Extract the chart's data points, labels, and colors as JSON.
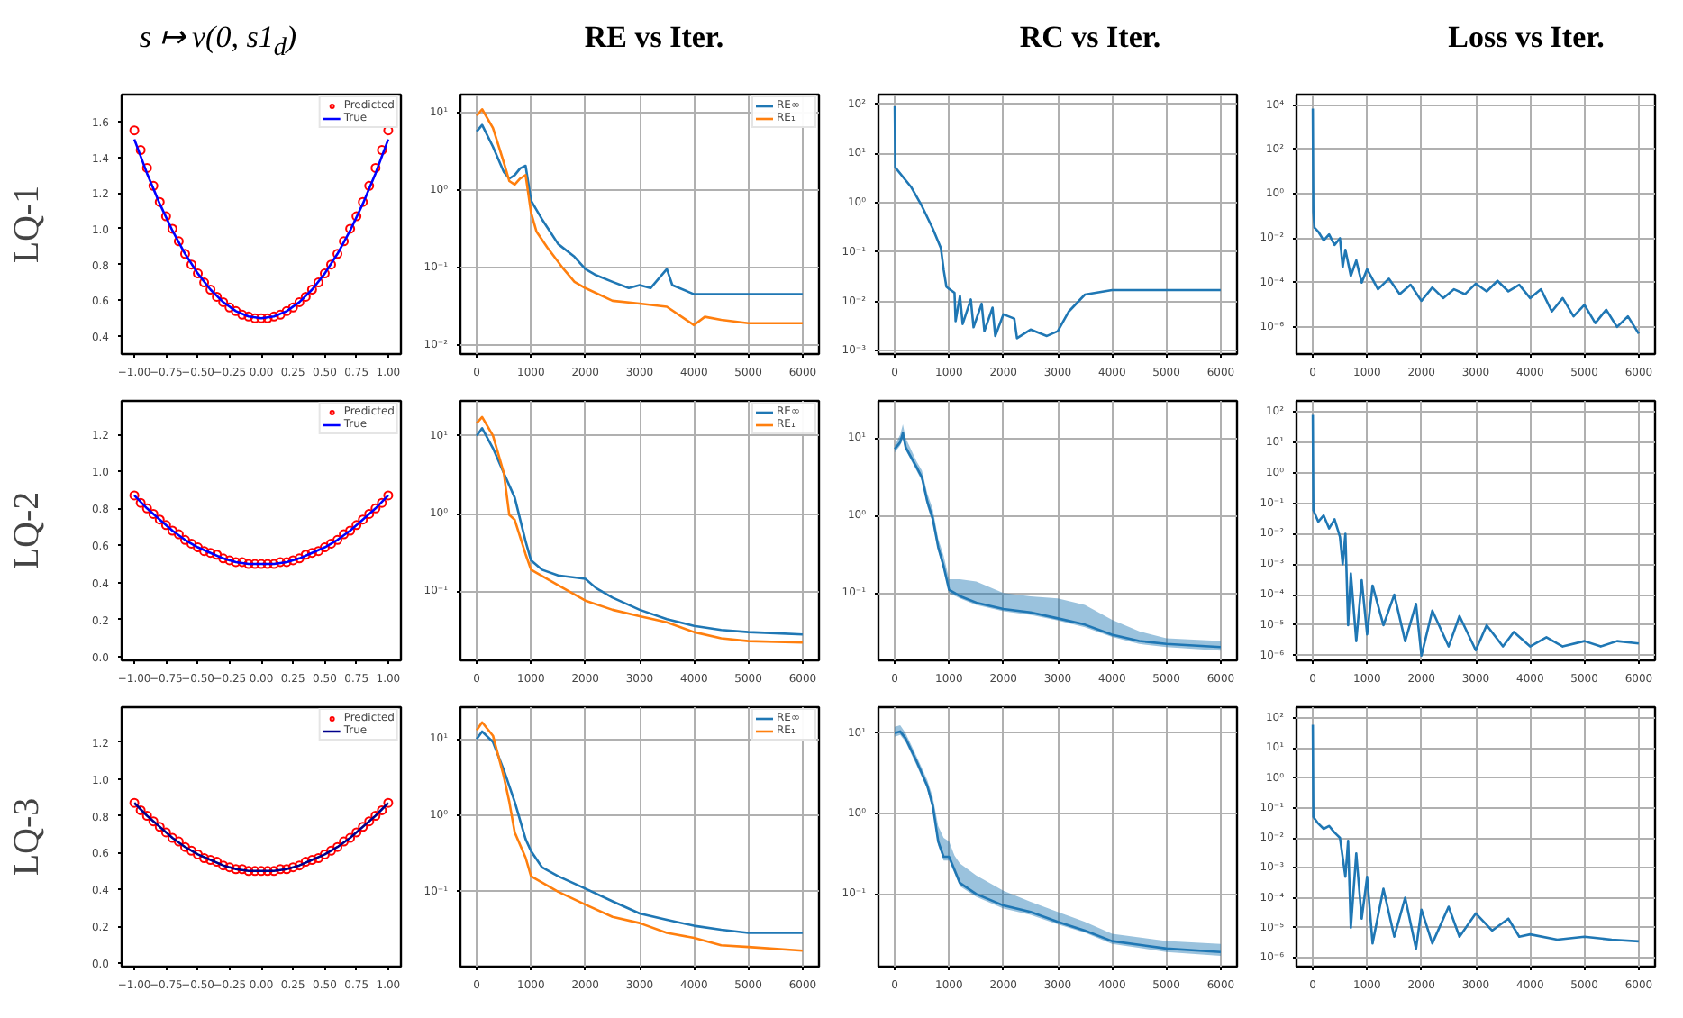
{
  "chart_data": [
    {
      "type": "line",
      "title": "s ↦ v(0, s1$_{d}$)",
      "ylabel": "LQ-1",
      "grid": false,
      "legend": "top right",
      "xlim": [
        -1.1,
        1.1
      ],
      "ylim": [
        0.3,
        1.75
      ],
      "xticks": [
        {
          "value": -1,
          "label": "−1.00"
        },
        {
          "value": -0.75,
          "label": "−0.75"
        },
        {
          "value": -0.5,
          "label": "−0.50"
        },
        {
          "value": -0.25,
          "label": "−0.25"
        },
        {
          "value": 0,
          "label": "0.00"
        },
        {
          "value": 0.25,
          "label": "0.25"
        },
        {
          "value": 0.5,
          "label": "0.50"
        },
        {
          "value": 0.75,
          "label": "0.75"
        },
        {
          "value": 1,
          "label": "1.00"
        }
      ],
      "yticks": [
        {
          "value": 0.4,
          "label": "0.4"
        },
        {
          "value": 0.6,
          "label": "0.6"
        },
        {
          "value": 0.8,
          "label": "0.8"
        },
        {
          "value": 1.0,
          "label": "1.0"
        },
        {
          "value": 1.2,
          "label": "1.2"
        },
        {
          "value": 1.4,
          "label": "1.4"
        },
        {
          "value": 1.6,
          "label": "1.6"
        }
      ],
      "series": [
        {
          "name": "Predicted",
          "type": "scatter",
          "marker": "circle",
          "color": "#ff0000",
          "x": [
            -1,
            -0.95,
            -0.9,
            -0.85,
            -0.8,
            -0.75,
            -0.7,
            -0.65,
            -0.6,
            -0.55,
            -0.5,
            -0.45,
            -0.4,
            -0.35,
            -0.3,
            -0.25,
            -0.2,
            -0.15,
            -0.1,
            -0.05,
            0,
            0.05,
            0.1,
            0.15,
            0.2,
            0.25,
            0.3,
            0.35,
            0.4,
            0.45,
            0.5,
            0.55,
            0.6,
            0.65,
            0.7,
            0.75,
            0.8,
            0.85,
            0.9,
            0.95,
            1
          ],
          "values": [
            1.55,
            1.44,
            1.34,
            1.24,
            1.15,
            1.07,
            1.0,
            0.93,
            0.86,
            0.8,
            0.75,
            0.7,
            0.66,
            0.62,
            0.59,
            0.56,
            0.54,
            0.52,
            0.51,
            0.5,
            0.5,
            0.5,
            0.51,
            0.52,
            0.54,
            0.56,
            0.59,
            0.62,
            0.66,
            0.7,
            0.75,
            0.8,
            0.86,
            0.93,
            1.0,
            1.07,
            1.15,
            1.24,
            1.34,
            1.44,
            1.55
          ]
        },
        {
          "name": "True",
          "type": "line",
          "color": "#0000ff",
          "x": [
            -1,
            -0.9,
            -0.8,
            -0.7,
            -0.6,
            -0.5,
            -0.4,
            -0.3,
            -0.2,
            -0.1,
            0,
            0.1,
            0.2,
            0.3,
            0.4,
            0.5,
            0.6,
            0.7,
            0.8,
            0.9,
            1
          ],
          "values": [
            1.5,
            1.31,
            1.14,
            0.99,
            0.86,
            0.75,
            0.66,
            0.59,
            0.54,
            0.51,
            0.5,
            0.51,
            0.54,
            0.59,
            0.66,
            0.75,
            0.86,
            0.99,
            1.14,
            1.31,
            1.5
          ]
        }
      ]
    },
    {
      "type": "line",
      "title": "RE vs Iter.",
      "log": "y",
      "grid": true,
      "legend": "top right",
      "xlim": [
        -300,
        6300
      ],
      "ylim": [
        0.0076,
        17
      ],
      "xticks": [
        0,
        1000,
        2000,
        3000,
        4000,
        5000,
        6000
      ],
      "yticks": [
        {
          "value": 0.01,
          "label": "10⁻²"
        },
        {
          "value": 0.1,
          "label": "10⁻¹"
        },
        {
          "value": 1,
          "label": "10⁰"
        },
        {
          "value": 10,
          "label": "10¹"
        }
      ],
      "series": [
        {
          "name": "RE∞",
          "color": "#1f77b4",
          "x": [
            0,
            100,
            300,
            500,
            600,
            700,
            800,
            900,
            1000,
            1200,
            1500,
            1800,
            2000,
            2200,
            2500,
            2800,
            3000,
            3200,
            3500,
            3600,
            4000,
            4500,
            5000,
            5500,
            6000
          ],
          "values": [
            5.7,
            6.9,
            3.6,
            1.7,
            1.4,
            1.55,
            1.9,
            2.05,
            0.73,
            0.42,
            0.2,
            0.137,
            0.095,
            0.079,
            0.065,
            0.054,
            0.059,
            0.054,
            0.095,
            0.059,
            0.045,
            0.045,
            0.045,
            0.045,
            0.045
          ]
        },
        {
          "name": "RE₁",
          "color": "#ff7f0e",
          "x": [
            0,
            100,
            300,
            500,
            600,
            700,
            800,
            900,
            1000,
            1100,
            1300,
            1600,
            1800,
            2000,
            2500,
            3000,
            3500,
            4000,
            4200,
            4500,
            5000,
            5500,
            6000
          ],
          "values": [
            9.1,
            11,
            6.3,
            2.25,
            1.3,
            1.17,
            1.4,
            1.55,
            0.51,
            0.29,
            0.18,
            0.095,
            0.065,
            0.054,
            0.037,
            0.034,
            0.031,
            0.018,
            0.023,
            0.021,
            0.019,
            0.019,
            0.019
          ]
        }
      ]
    },
    {
      "type": "line",
      "title": "RC vs Iter.",
      "log": "y",
      "grid": true,
      "xlim": [
        -300,
        6300
      ],
      "ylim": [
        0.00086,
        156
      ],
      "xticks": [
        0,
        1000,
        2000,
        3000,
        4000,
        5000,
        6000
      ],
      "yticks": [
        {
          "value": 0.001,
          "label": "10⁻³"
        },
        {
          "value": 0.01,
          "label": "10⁻²"
        },
        {
          "value": 0.1,
          "label": "10⁻¹"
        },
        {
          "value": 1,
          "label": "10⁰"
        },
        {
          "value": 10,
          "label": "10¹"
        },
        {
          "value": 100,
          "label": "10²"
        }
      ],
      "series": [
        {
          "color": "#1f77b4",
          "x": [
            0,
            10,
            300,
            500,
            700,
            850,
            900,
            950,
            1000,
            1100,
            1120,
            1200,
            1250,
            1400,
            1450,
            1600,
            1650,
            1800,
            1850,
            2000,
            2200,
            2250,
            2500,
            2800,
            3000,
            3200,
            3500,
            4000,
            5000,
            6000
          ],
          "values": [
            90,
            5.2,
            2.1,
            0.86,
            0.3,
            0.12,
            0.044,
            0.02,
            0.018,
            0.015,
            0.004,
            0.013,
            0.0035,
            0.011,
            0.003,
            0.009,
            0.0025,
            0.0075,
            0.002,
            0.0055,
            0.0045,
            0.0018,
            0.0027,
            0.002,
            0.0025,
            0.0062,
            0.0138,
            0.017,
            0.017,
            0.017
          ]
        }
      ]
    },
    {
      "type": "line",
      "title": "Loss vs Iter.",
      "log": "y",
      "grid": true,
      "xlim": [
        -300,
        6300
      ],
      "ylim": [
        6e-08,
        30000
      ],
      "xticks": [
        0,
        1000,
        2000,
        3000,
        4000,
        5000,
        6000
      ],
      "yticks": [
        {
          "value": 1e-06,
          "label": "10⁻⁶"
        },
        {
          "value": 0.0001,
          "label": "10⁻⁴"
        },
        {
          "value": 0.01,
          "label": "10⁻²"
        },
        {
          "value": 1,
          "label": "10⁰"
        },
        {
          "value": 100,
          "label": "10²"
        },
        {
          "value": 10000,
          "label": "10⁴"
        }
      ],
      "series": [
        {
          "color": "#1f77b4",
          "x": [
            0,
            10,
            30,
            100,
            200,
            300,
            400,
            500,
            550,
            600,
            700,
            800,
            900,
            1000,
            1200,
            1400,
            1600,
            1800,
            2000,
            2200,
            2400,
            2600,
            2800,
            3000,
            3200,
            3400,
            3600,
            3800,
            4000,
            4200,
            4400,
            4600,
            4800,
            5000,
            5200,
            5400,
            5600,
            5800,
            6000
          ],
          "values": [
            7000,
            0.16,
            0.03,
            0.02,
            0.008,
            0.015,
            0.005,
            0.01,
            0.0005,
            0.003,
            0.0002,
            0.001,
            0.0001,
            0.0004,
            5e-05,
            0.00015,
            3e-05,
            8e-05,
            1.5e-05,
            6e-05,
            2e-05,
            5e-05,
            3e-05,
            9e-05,
            4e-05,
            0.00012,
            4e-05,
            8e-05,
            2e-05,
            5e-05,
            5e-06,
            2e-05,
            3e-06,
            1e-05,
            1.5e-06,
            6e-06,
            1e-06,
            3e-06,
            5e-07
          ]
        }
      ]
    },
    {
      "type": "line",
      "ylabel": "LQ-2",
      "grid": false,
      "legend": "top right",
      "xlim": [
        -1.1,
        1.1
      ],
      "ylim": [
        -0.02,
        1.38
      ],
      "xticks": [
        {
          "value": -1,
          "label": "−1.00"
        },
        {
          "value": -0.75,
          "label": "−0.75"
        },
        {
          "value": -0.5,
          "label": "−0.50"
        },
        {
          "value": -0.25,
          "label": "−0.25"
        },
        {
          "value": 0,
          "label": "0.00"
        },
        {
          "value": 0.25,
          "label": "0.25"
        },
        {
          "value": 0.5,
          "label": "0.50"
        },
        {
          "value": 0.75,
          "label": "0.75"
        },
        {
          "value": 1,
          "label": "1.00"
        }
      ],
      "yticks": [
        {
          "value": 0,
          "label": "0.0"
        },
        {
          "value": 0.2,
          "label": "0.2"
        },
        {
          "value": 0.4,
          "label": "0.4"
        },
        {
          "value": 0.6,
          "label": "0.6"
        },
        {
          "value": 0.8,
          "label": "0.8"
        },
        {
          "value": 1.0,
          "label": "1.0"
        },
        {
          "value": 1.2,
          "label": "1.2"
        }
      ],
      "series": [
        {
          "name": "Predicted",
          "type": "scatter",
          "marker": "circle",
          "color": "#ff0000",
          "x": [
            -1,
            -0.95,
            -0.9,
            -0.85,
            -0.8,
            -0.75,
            -0.7,
            -0.65,
            -0.6,
            -0.55,
            -0.5,
            -0.45,
            -0.4,
            -0.35,
            -0.3,
            -0.25,
            -0.2,
            -0.15,
            -0.1,
            -0.05,
            0,
            0.05,
            0.1,
            0.15,
            0.2,
            0.25,
            0.3,
            0.35,
            0.4,
            0.45,
            0.5,
            0.55,
            0.6,
            0.65,
            0.7,
            0.75,
            0.8,
            0.85,
            0.9,
            0.95,
            1
          ],
          "values": [
            0.87,
            0.83,
            0.8,
            0.77,
            0.74,
            0.71,
            0.68,
            0.66,
            0.63,
            0.61,
            0.59,
            0.57,
            0.56,
            0.55,
            0.53,
            0.52,
            0.51,
            0.51,
            0.5,
            0.5,
            0.5,
            0.5,
            0.5,
            0.51,
            0.51,
            0.52,
            0.53,
            0.55,
            0.56,
            0.57,
            0.59,
            0.61,
            0.63,
            0.66,
            0.68,
            0.71,
            0.74,
            0.77,
            0.8,
            0.83,
            0.87
          ]
        },
        {
          "name": "True",
          "type": "line",
          "color": "#0000ff",
          "x": [
            -1,
            -0.9,
            -0.8,
            -0.7,
            -0.6,
            -0.5,
            -0.4,
            -0.3,
            -0.2,
            -0.1,
            0,
            0.1,
            0.2,
            0.3,
            0.4,
            0.5,
            0.6,
            0.7,
            0.8,
            0.9,
            1
          ],
          "values": [
            0.87,
            0.8,
            0.74,
            0.68,
            0.63,
            0.59,
            0.56,
            0.53,
            0.51,
            0.5,
            0.5,
            0.5,
            0.51,
            0.53,
            0.56,
            0.59,
            0.63,
            0.68,
            0.74,
            0.8,
            0.87
          ]
        }
      ]
    },
    {
      "type": "line",
      "log": "y",
      "grid": true,
      "legend": "top right",
      "xlim": [
        -300,
        6300
      ],
      "ylim": [
        0.013,
        28
      ],
      "xticks": [
        0,
        1000,
        2000,
        3000,
        4000,
        5000,
        6000
      ],
      "yticks": [
        {
          "value": 0.1,
          "label": "10⁻¹"
        },
        {
          "value": 1,
          "label": "10⁰"
        },
        {
          "value": 10,
          "label": "10¹"
        }
      ],
      "series": [
        {
          "name": "RE∞",
          "color": "#1f77b4",
          "x": [
            0,
            100,
            300,
            500,
            700,
            900,
            1000,
            1200,
            1500,
            2000,
            2200,
            2500,
            3000,
            3500,
            4000,
            4500,
            5000,
            5500,
            6000
          ],
          "values": [
            10,
            12.5,
            6.9,
            3.3,
            1.6,
            0.44,
            0.25,
            0.19,
            0.16,
            0.145,
            0.11,
            0.083,
            0.058,
            0.044,
            0.036,
            0.032,
            0.03,
            0.029,
            0.028
          ]
        },
        {
          "name": "RE₁",
          "color": "#ff7f0e",
          "x": [
            0,
            100,
            300,
            500,
            600,
            700,
            900,
            1000,
            1500,
            2000,
            2500,
            3000,
            3500,
            4000,
            4500,
            5000,
            6000
          ],
          "values": [
            14.5,
            17.4,
            10,
            3.3,
            0.96,
            0.83,
            0.3,
            0.19,
            0.12,
            0.076,
            0.058,
            0.048,
            0.04,
            0.03,
            0.025,
            0.023,
            0.022
          ]
        }
      ]
    },
    {
      "type": "line",
      "log": "y",
      "grid": true,
      "xlim": [
        -300,
        6300
      ],
      "ylim": [
        0.0135,
        30
      ],
      "xticks": [
        0,
        1000,
        2000,
        3000,
        4000,
        5000,
        6000
      ],
      "yticks": [
        {
          "value": 0.1,
          "label": "10⁻¹"
        },
        {
          "value": 1,
          "label": "10⁰"
        },
        {
          "value": 10,
          "label": "10¹"
        }
      ],
      "series": [
        {
          "color": "#1f77b4",
          "x": [
            0,
            100,
            150,
            200,
            400,
            500,
            600,
            700,
            800,
            900,
            1000,
            1200,
            1500,
            2000,
            2500,
            3000,
            3500,
            4000,
            4500,
            5000,
            6000
          ],
          "values": [
            7.2,
            8.8,
            11.6,
            7.6,
            4.2,
            3.1,
            1.5,
            0.91,
            0.39,
            0.22,
            0.11,
            0.091,
            0.075,
            0.062,
            0.056,
            0.047,
            0.039,
            0.029,
            0.024,
            0.022,
            0.02
          ],
          "upper": [
            8,
            11,
            15,
            10,
            5,
            3.8,
            1.9,
            1.2,
            0.5,
            0.3,
            0.15,
            0.15,
            0.14,
            0.1,
            0.09,
            0.085,
            0.07,
            0.045,
            0.032,
            0.026,
            0.024
          ],
          "lower": [
            6.5,
            8,
            10,
            7,
            3.8,
            2.8,
            1.3,
            0.8,
            0.35,
            0.2,
            0.1,
            0.085,
            0.07,
            0.058,
            0.052,
            0.044,
            0.036,
            0.027,
            0.022,
            0.02,
            0.018
          ]
        }
      ]
    },
    {
      "type": "line",
      "log": "y",
      "grid": true,
      "xlim": [
        -300,
        6300
      ],
      "ylim": [
        7e-07,
        230
      ],
      "xticks": [
        0,
        1000,
        2000,
        3000,
        4000,
        5000,
        6000
      ],
      "yticks": [
        {
          "value": 1e-06,
          "label": "10⁻⁶"
        },
        {
          "value": 1e-05,
          "label": "10⁻⁵"
        },
        {
          "value": 0.0001,
          "label": "10⁻⁴"
        },
        {
          "value": 0.001,
          "label": "10⁻³"
        },
        {
          "value": 0.01,
          "label": "10⁻²"
        },
        {
          "value": 0.1,
          "label": "10⁻¹"
        },
        {
          "value": 1,
          "label": "10⁰"
        },
        {
          "value": 10,
          "label": "10¹"
        },
        {
          "value": 100,
          "label": "10²"
        }
      ],
      "series": [
        {
          "color": "#1f77b4",
          "x": [
            0,
            10,
            100,
            200,
            300,
            400,
            500,
            550,
            600,
            650,
            700,
            800,
            900,
            1000,
            1100,
            1300,
            1500,
            1700,
            1900,
            2000,
            2200,
            2500,
            2700,
            3000,
            3200,
            3500,
            3700,
            4000,
            4300,
            4600,
            5000,
            5300,
            5600,
            6000
          ],
          "values": [
            80,
            0.06,
            0.025,
            0.04,
            0.015,
            0.03,
            0.008,
            0.001,
            0.01,
            1e-05,
            0.0005,
            3e-06,
            0.0003,
            5e-06,
            0.0002,
            1e-05,
            0.0001,
            3e-06,
            5e-05,
            1e-06,
            3e-05,
            2e-06,
            2e-05,
            1.5e-06,
            1e-05,
            2e-06,
            6e-06,
            2e-06,
            4e-06,
            2e-06,
            3e-06,
            2e-06,
            3e-06,
            2.5e-06
          ]
        }
      ]
    },
    {
      "type": "line",
      "ylabel": "LQ-3",
      "grid": false,
      "legend": "top right",
      "xlim": [
        -1.1,
        1.1
      ],
      "ylim": [
        -0.02,
        1.39
      ],
      "xticks": [
        {
          "value": -1,
          "label": "−1.00"
        },
        {
          "value": -0.75,
          "label": "−0.75"
        },
        {
          "value": -0.5,
          "label": "−0.50"
        },
        {
          "value": -0.25,
          "label": "−0.25"
        },
        {
          "value": 0,
          "label": "0.00"
        },
        {
          "value": 0.25,
          "label": "0.25"
        },
        {
          "value": 0.5,
          "label": "0.50"
        },
        {
          "value": 0.75,
          "label": "0.75"
        },
        {
          "value": 1,
          "label": "1.00"
        }
      ],
      "yticks": [
        {
          "value": 0,
          "label": "0.0"
        },
        {
          "value": 0.2,
          "label": "0.2"
        },
        {
          "value": 0.4,
          "label": "0.4"
        },
        {
          "value": 0.6,
          "label": "0.6"
        },
        {
          "value": 0.8,
          "label": "0.8"
        },
        {
          "value": 1.0,
          "label": "1.0"
        },
        {
          "value": 1.2,
          "label": "1.2"
        }
      ],
      "series": [
        {
          "name": "Predicted",
          "type": "scatter",
          "marker": "circle",
          "color": "#ff0000",
          "x": [
            -1,
            -0.95,
            -0.9,
            -0.85,
            -0.8,
            -0.75,
            -0.7,
            -0.65,
            -0.6,
            -0.55,
            -0.5,
            -0.45,
            -0.4,
            -0.35,
            -0.3,
            -0.25,
            -0.2,
            -0.15,
            -0.1,
            -0.05,
            0,
            0.05,
            0.1,
            0.15,
            0.2,
            0.25,
            0.3,
            0.35,
            0.4,
            0.45,
            0.5,
            0.55,
            0.6,
            0.65,
            0.7,
            0.75,
            0.8,
            0.85,
            0.9,
            0.95,
            1
          ],
          "values": [
            0.87,
            0.83,
            0.8,
            0.77,
            0.74,
            0.71,
            0.68,
            0.66,
            0.63,
            0.61,
            0.59,
            0.57,
            0.56,
            0.55,
            0.53,
            0.52,
            0.51,
            0.51,
            0.5,
            0.5,
            0.5,
            0.5,
            0.5,
            0.51,
            0.51,
            0.52,
            0.53,
            0.55,
            0.56,
            0.57,
            0.59,
            0.61,
            0.63,
            0.66,
            0.68,
            0.71,
            0.74,
            0.77,
            0.8,
            0.83,
            0.87
          ]
        },
        {
          "name": "True",
          "type": "line",
          "color": "#00008b",
          "x": [
            -1,
            -0.9,
            -0.8,
            -0.7,
            -0.6,
            -0.5,
            -0.4,
            -0.3,
            -0.2,
            -0.1,
            0,
            0.1,
            0.2,
            0.3,
            0.4,
            0.5,
            0.6,
            0.7,
            0.8,
            0.9,
            1
          ],
          "values": [
            0.87,
            0.8,
            0.74,
            0.68,
            0.63,
            0.59,
            0.56,
            0.53,
            0.51,
            0.5,
            0.5,
            0.5,
            0.51,
            0.53,
            0.56,
            0.59,
            0.63,
            0.68,
            0.74,
            0.8,
            0.87
          ]
        }
      ]
    },
    {
      "type": "line",
      "log": "y",
      "grid": true,
      "legend": "top right",
      "xlim": [
        -300,
        6300
      ],
      "ylim": [
        0.0105,
        26
      ],
      "xticks": [
        0,
        1000,
        2000,
        3000,
        4000,
        5000,
        6000
      ],
      "yticks": [
        {
          "value": 0.1,
          "label": "10⁻¹"
        },
        {
          "value": 1,
          "label": "10⁰"
        },
        {
          "value": 10,
          "label": "10¹"
        }
      ],
      "series": [
        {
          "name": "RE∞",
          "color": "#1f77b4",
          "x": [
            0,
            100,
            300,
            500,
            700,
            900,
            1000,
            1200,
            1500,
            2000,
            2500,
            3000,
            3500,
            4000,
            4500,
            5000,
            6000
          ],
          "values": [
            10,
            12.5,
            9.1,
            3.9,
            1.5,
            0.49,
            0.34,
            0.21,
            0.16,
            0.11,
            0.075,
            0.052,
            0.043,
            0.036,
            0.032,
            0.029,
            0.029
          ]
        },
        {
          "name": "RE₁",
          "color": "#ff7f0e",
          "x": [
            0,
            100,
            300,
            500,
            600,
            700,
            900,
            1000,
            1500,
            2000,
            2500,
            3000,
            3500,
            4000,
            4500,
            5000,
            6000
          ],
          "values": [
            13,
            16.5,
            11,
            3.2,
            1.5,
            0.6,
            0.28,
            0.16,
            0.1,
            0.068,
            0.047,
            0.039,
            0.029,
            0.025,
            0.02,
            0.019,
            0.017
          ]
        }
      ]
    },
    {
      "type": "line",
      "log": "y",
      "grid": true,
      "xlim": [
        -300,
        6300
      ],
      "ylim": [
        0.0125,
        21
      ],
      "xticks": [
        0,
        1000,
        2000,
        3000,
        4000,
        5000,
        6000
      ],
      "yticks": [
        {
          "value": 0.1,
          "label": "10⁻¹"
        },
        {
          "value": 1,
          "label": "10⁰"
        },
        {
          "value": 10,
          "label": "10¹"
        }
      ],
      "series": [
        {
          "color": "#1f77b4",
          "x": [
            0,
            100,
            200,
            400,
            600,
            700,
            800,
            900,
            1000,
            1100,
            1200,
            1500,
            2000,
            2500,
            3000,
            3500,
            4000,
            5000,
            6000
          ],
          "values": [
            10,
            10.5,
            8.6,
            4.5,
            2.2,
            1.25,
            0.45,
            0.29,
            0.29,
            0.2,
            0.137,
            0.1,
            0.072,
            0.06,
            0.045,
            0.035,
            0.026,
            0.021,
            0.019
          ],
          "upper": [
            12,
            12.5,
            10,
            5.2,
            2.6,
            1.6,
            0.7,
            0.5,
            0.45,
            0.3,
            0.24,
            0.17,
            0.11,
            0.08,
            0.06,
            0.045,
            0.032,
            0.026,
            0.024
          ],
          "lower": [
            9,
            9.5,
            7.8,
            4,
            2,
            1.1,
            0.4,
            0.26,
            0.26,
            0.18,
            0.125,
            0.092,
            0.066,
            0.055,
            0.042,
            0.033,
            0.024,
            0.019,
            0.017
          ]
        }
      ]
    },
    {
      "type": "line",
      "log": "y",
      "grid": true,
      "xlim": [
        -300,
        6300
      ],
      "ylim": [
        5e-07,
        230
      ],
      "xticks": [
        0,
        1000,
        2000,
        3000,
        4000,
        5000,
        6000
      ],
      "yticks": [
        {
          "value": 1e-06,
          "label": "10⁻⁶"
        },
        {
          "value": 1e-05,
          "label": "10⁻⁵"
        },
        {
          "value": 0.0001,
          "label": "10⁻⁴"
        },
        {
          "value": 0.001,
          "label": "10⁻³"
        },
        {
          "value": 0.01,
          "label": "10⁻²"
        },
        {
          "value": 0.1,
          "label": "10⁻¹"
        },
        {
          "value": 1,
          "label": "10⁰"
        },
        {
          "value": 10,
          "label": "10¹"
        },
        {
          "value": 100,
          "label": "10²"
        }
      ],
      "series": [
        {
          "color": "#1f77b4",
          "x": [
            0,
            10,
            100,
            200,
            300,
            400,
            500,
            600,
            650,
            700,
            800,
            900,
            1000,
            1100,
            1300,
            1500,
            1700,
            1900,
            2000,
            2200,
            2500,
            2700,
            3000,
            3300,
            3600,
            3800,
            4000,
            4500,
            5000,
            5500,
            6000
          ],
          "values": [
            60,
            0.05,
            0.03,
            0.02,
            0.025,
            0.015,
            0.01,
            0.0005,
            0.008,
            1e-05,
            0.003,
            2e-05,
            0.0005,
            3e-06,
            0.0002,
            5e-06,
            0.0001,
            2e-06,
            4e-05,
            3e-06,
            5e-05,
            5e-06,
            3e-05,
            8e-06,
            2e-05,
            5e-06,
            6e-06,
            4e-06,
            5e-06,
            4e-06,
            3.5e-06
          ]
        }
      ]
    }
  ]
}
